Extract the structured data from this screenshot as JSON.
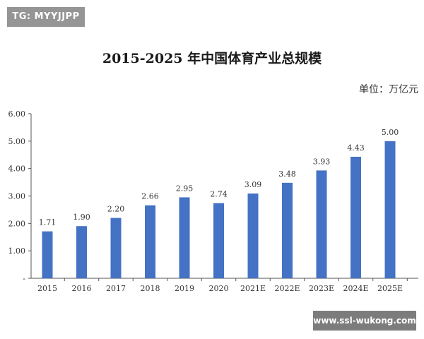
{
  "watermark_top": "TG: MYYJJPP",
  "watermark_bottom": "www.ssl-wukong.com",
  "chart_data": {
    "type": "bar",
    "title": "2015-2025 年中国体育产业总规模",
    "unit_label": "单位：万亿元",
    "categories": [
      "2015",
      "2016",
      "2017",
      "2018",
      "2019",
      "2020",
      "2021E",
      "2022E",
      "2023E",
      "2024E",
      "2025E"
    ],
    "values": [
      1.71,
      1.9,
      2.2,
      2.66,
      2.95,
      2.74,
      3.09,
      3.48,
      3.93,
      4.43,
      5.0
    ],
    "value_labels": [
      "1.71",
      "1.90",
      "2.20",
      "2.66",
      "2.95",
      "2.74",
      "3.09",
      "3.48",
      "3.93",
      "4.43",
      "5.00"
    ],
    "y_ticks": [
      "-",
      "1.00",
      "2.00",
      "3.00",
      "4.00",
      "5.00",
      "6.00"
    ],
    "ylim": [
      0,
      6
    ],
    "bar_color": "#4472C4",
    "grid": false,
    "legend": "none"
  }
}
